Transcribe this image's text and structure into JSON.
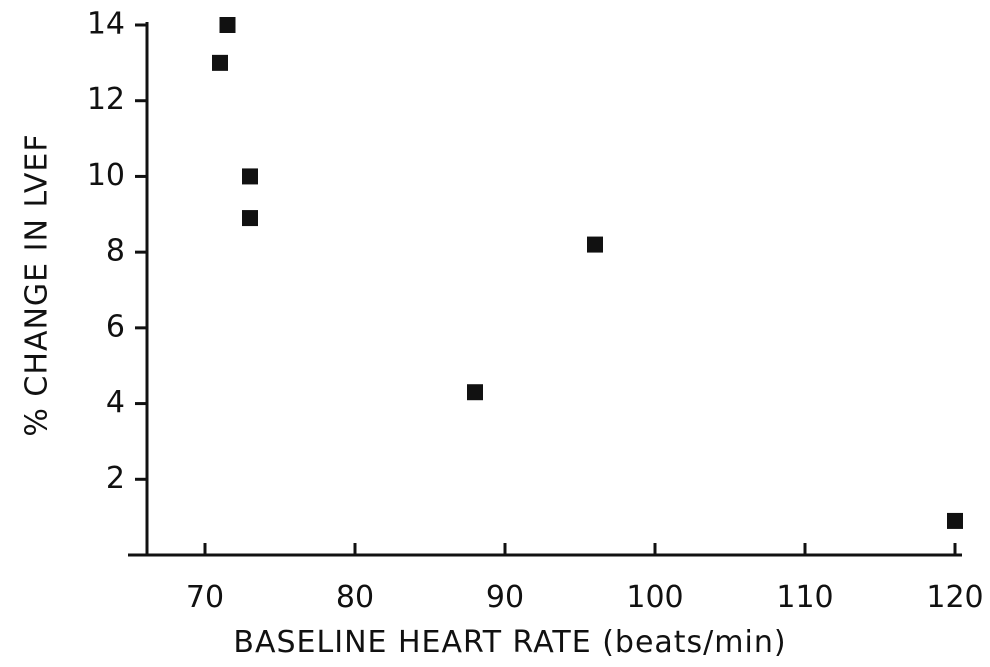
{
  "chart_data": {
    "type": "scatter",
    "title": "",
    "xlabel": "BASELINE HEART RATE (beats/min)",
    "ylabel": "% CHANGE IN LVEF",
    "xlim": [
      67.5,
      120
    ],
    "ylim": [
      0,
      14
    ],
    "x_ticks": [
      70,
      80,
      90,
      100,
      110,
      120
    ],
    "x_tick_labels": [
      "70",
      "80",
      "90",
      "100",
      "110",
      "120"
    ],
    "y_ticks": [
      2,
      4,
      6,
      8,
      10,
      12,
      14
    ],
    "y_tick_labels": [
      "2",
      "4",
      "6",
      "8",
      "10",
      "12",
      "14"
    ],
    "grid": false,
    "points": [
      {
        "x": 71.5,
        "y": 14.0
      },
      {
        "x": 71.0,
        "y": 13.0
      },
      {
        "x": 73.0,
        "y": 10.0
      },
      {
        "x": 73.0,
        "y": 8.9
      },
      {
        "x": 96.0,
        "y": 8.2
      },
      {
        "x": 88.0,
        "y": 4.3
      },
      {
        "x": 120.0,
        "y": 0.9
      }
    ],
    "marker": "square",
    "color": "#111111"
  }
}
